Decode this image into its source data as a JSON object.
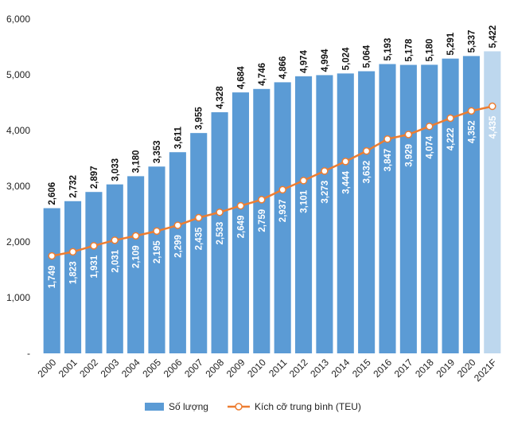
{
  "chart_data": {
    "type": "bar",
    "title": "",
    "xlabel": "",
    "ylabel": "",
    "ylim": [
      0,
      6000
    ],
    "yticks": [
      {
        "value": 0,
        "label": "-"
      },
      {
        "value": 1000,
        "label": "1,000"
      },
      {
        "value": 2000,
        "label": "2,000"
      },
      {
        "value": 3000,
        "label": "3,000"
      },
      {
        "value": 4000,
        "label": "4,000"
      },
      {
        "value": 5000,
        "label": "5,000"
      },
      {
        "value": 6000,
        "label": "6,000"
      }
    ],
    "categories": [
      "2000",
      "2001",
      "2002",
      "2003",
      "2004",
      "2005",
      "2006",
      "2007",
      "2008",
      "2009",
      "2010",
      "2011",
      "2012",
      "2013",
      "2014",
      "2015",
      "2016",
      "2017",
      "2018",
      "2019",
      "2020",
      "2021F"
    ],
    "grid": false,
    "legend_position": "bottom",
    "series": [
      {
        "name": "Số lượng",
        "kind": "bar",
        "color": "#5b9bd5",
        "highlight_color": "#bdd7ee",
        "highlight_category": "2021F",
        "values": [
          2606,
          2732,
          2897,
          3033,
          3180,
          3353,
          3611,
          3955,
          4328,
          4684,
          4746,
          4866,
          4974,
          4994,
          5024,
          5064,
          5193,
          5178,
          5180,
          5291,
          5337,
          5422
        ],
        "labels": [
          "2,606",
          "2,732",
          "2,897",
          "3,033",
          "3,180",
          "3,353",
          "3,611",
          "3,955",
          "4,328",
          "4,684",
          "4,746",
          "4,866",
          "4,974",
          "4,994",
          "5,024",
          "5,064",
          "5,193",
          "5,178",
          "5,180",
          "5,291",
          "5,337",
          "5,422"
        ]
      },
      {
        "name": "Kích cỡ trung bình (TEU)",
        "kind": "line",
        "color": "#ed7d31",
        "values": [
          1749,
          1823,
          1931,
          2031,
          2109,
          2195,
          2299,
          2435,
          2533,
          2649,
          2759,
          2937,
          3101,
          3273,
          3444,
          3632,
          3847,
          3929,
          4074,
          4222,
          4352,
          4435
        ],
        "labels": [
          "1,749",
          "1,823",
          "1,931",
          "2,031",
          "2,109",
          "2,195",
          "2,299",
          "2,435",
          "2,533",
          "2,649",
          "2,759",
          "2,937",
          "3,101",
          "3,273",
          "3,444",
          "3,632",
          "3,847",
          "3,929",
          "4,074",
          "4,222",
          "4,352",
          "4,435"
        ]
      }
    ]
  }
}
